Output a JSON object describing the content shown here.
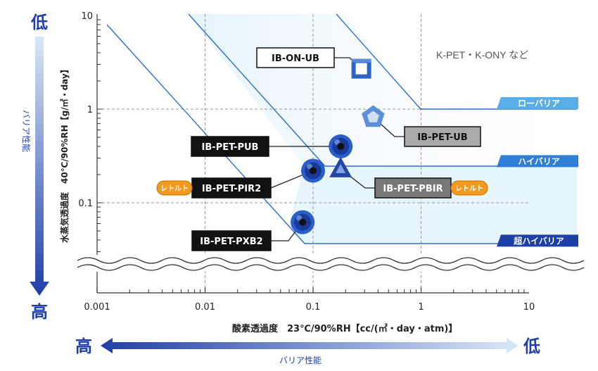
{
  "chart_data": {
    "type": "scatter",
    "xscale": "log",
    "yscale": "log",
    "xlim": [
      0.001,
      10
    ],
    "ylim": [
      0.03,
      10
    ],
    "x_ticks": [
      {
        "value": 0.001,
        "label": "0.001"
      },
      {
        "value": 0.01,
        "label": "0.01"
      },
      {
        "value": 0.1,
        "label": "0.1"
      },
      {
        "value": 1,
        "label": "1"
      },
      {
        "value": 10,
        "label": "10"
      }
    ],
    "y_ticks": [
      {
        "value": 10,
        "label": "10"
      },
      {
        "value": 1,
        "label": "1"
      },
      {
        "value": 0.1,
        "label": "0.1"
      }
    ],
    "xlabel": "酸素透過度　23℃/90%RH【cc/(㎡・day・atm)】",
    "ylabel": "水蒸気透過度　40℃/90%RH【g/㎡・day】",
    "grid": "dashed",
    "reference_text": "K-PET・K-ONY など",
    "left_arrow": {
      "top": "低",
      "bottom": "高",
      "label": "バリア性能"
    },
    "bottom_arrow": {
      "left": "高",
      "right": "低",
      "label": "バリア性能"
    },
    "zones": [
      {
        "label": "ローバリア",
        "y": 1,
        "color": "#5aaee8"
      },
      {
        "label": "ハイバリア",
        "y": 0.24,
        "color": "#2f7fd8"
      },
      {
        "label": "超ハイバリア",
        "y": 0.034,
        "color": "#1d3fa8"
      }
    ],
    "points": [
      {
        "name": "IB-ON-UB",
        "x": 0.28,
        "y": 2.7,
        "shape": "square",
        "color": "#2b63c6"
      },
      {
        "name": "IB-PET-UB",
        "x": 0.36,
        "y": 0.82,
        "shape": "pentagon",
        "color": "#5b8fd8"
      },
      {
        "name": "IB-PET-PUB",
        "x": 0.18,
        "y": 0.4,
        "shape": "circle",
        "color": "#2a5ec8"
      },
      {
        "name": "IB-PET-PIR2",
        "x": 0.1,
        "y": 0.22,
        "shape": "circle",
        "color": "#2a5ec8",
        "badge": "レトルト"
      },
      {
        "name": "IB-PET-PBIR",
        "x": 0.18,
        "y": 0.23,
        "shape": "triangle",
        "color": "#2444a8",
        "badge": "レトルト"
      },
      {
        "name": "IB-PET-PXB2",
        "x": 0.08,
        "y": 0.062,
        "shape": "circle",
        "color": "#2a5ec8"
      }
    ]
  }
}
